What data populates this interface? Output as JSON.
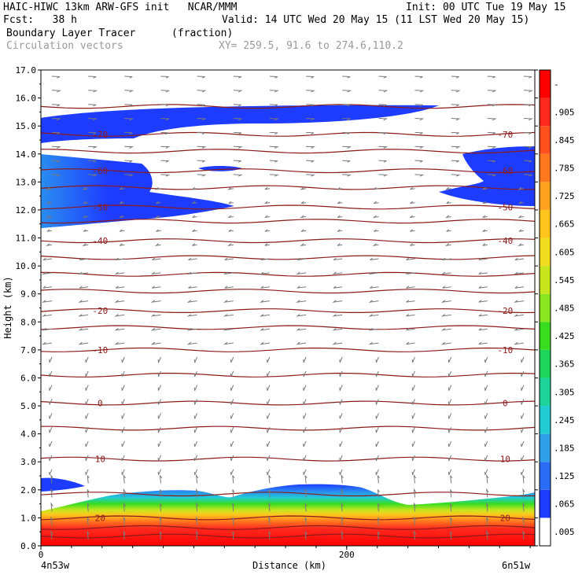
{
  "header": {
    "line1_left": "HAIC-HIWC 13km ARW-GFS init   NCAR/MMM",
    "line1_right": "Init: 00 UTC Tue 19 May 15",
    "fcst": "Fcst:   38 h",
    "valid": "Valid: 14 UTC Wed 20 May 15 (11 LST Wed 20 May 15)",
    "field": "Boundary Layer Tracer",
    "units": "(fraction)",
    "vectors": "Circulation vectors",
    "xy": "XY= 259.5, 91.6 to 274.6,110.2"
  },
  "chart_data": {
    "type": "heatmap",
    "title": "Boundary Layer Tracer",
    "xlabel": "Distance (km)",
    "ylabel": "Height (km)",
    "xlim": [
      0,
      323
    ],
    "ylim": [
      0,
      17
    ],
    "x_ticks": [
      "0",
      "200"
    ],
    "x_end_labels": {
      "left": "4n53w",
      "right": "6n51w"
    },
    "y_ticks": [
      "0.0",
      "1.0",
      "2.0",
      "3.0",
      "4.0",
      "5.0",
      "6.0",
      "7.0",
      "8.0",
      "9.0",
      "10.0",
      "11.0",
      "12.0",
      "13.0",
      "14.0",
      "15.0",
      "16.0",
      "17.0"
    ],
    "colorbar": {
      "labels": [
        ".005",
        ".065",
        ".125",
        ".185",
        ".245",
        ".305",
        ".365",
        ".425",
        ".485",
        ".545",
        ".605",
        ".665",
        ".725",
        ".785",
        ".845",
        ".905",
        "-"
      ],
      "colors": [
        "#ffffff",
        "#1e3cff",
        "#2a6cf4",
        "#2fa0e8",
        "#22ccd2",
        "#1ed49a",
        "#1ed45a",
        "#39dc1e",
        "#8ae61e",
        "#c8e61e",
        "#f0dc1e",
        "#ffc41e",
        "#ffa01e",
        "#ff781e",
        "#ff501e",
        "#ff2a1e",
        "#ff0000"
      ]
    },
    "temperature_contours": [
      {
        "height_km": 0.35,
        "label": ""
      },
      {
        "height_km": 0.65,
        "label": ""
      },
      {
        "height_km": 1.0,
        "label": "20"
      },
      {
        "height_km": 1.85,
        "label": ""
      },
      {
        "height_km": 3.1,
        "label": "10"
      },
      {
        "height_km": 4.2,
        "label": ""
      },
      {
        "height_km": 5.1,
        "label": "0"
      },
      {
        "height_km": 6.1,
        "label": ""
      },
      {
        "height_km": 7.0,
        "label": "-10"
      },
      {
        "height_km": 7.8,
        "label": ""
      },
      {
        "height_km": 8.4,
        "label": "-20"
      },
      {
        "height_km": 9.1,
        "label": ""
      },
      {
        "height_km": 9.7,
        "label": ""
      },
      {
        "height_km": 10.3,
        "label": ""
      },
      {
        "height_km": 10.9,
        "label": "-40"
      },
      {
        "height_km": 11.6,
        "label": ""
      },
      {
        "height_km": 12.1,
        "label": "-50"
      },
      {
        "height_km": 12.8,
        "label": ""
      },
      {
        "height_km": 13.4,
        "label": "-60"
      },
      {
        "height_km": 14.1,
        "label": ""
      },
      {
        "height_km": 14.7,
        "label": "-70"
      },
      {
        "height_km": 15.7,
        "label": ""
      }
    ]
  }
}
